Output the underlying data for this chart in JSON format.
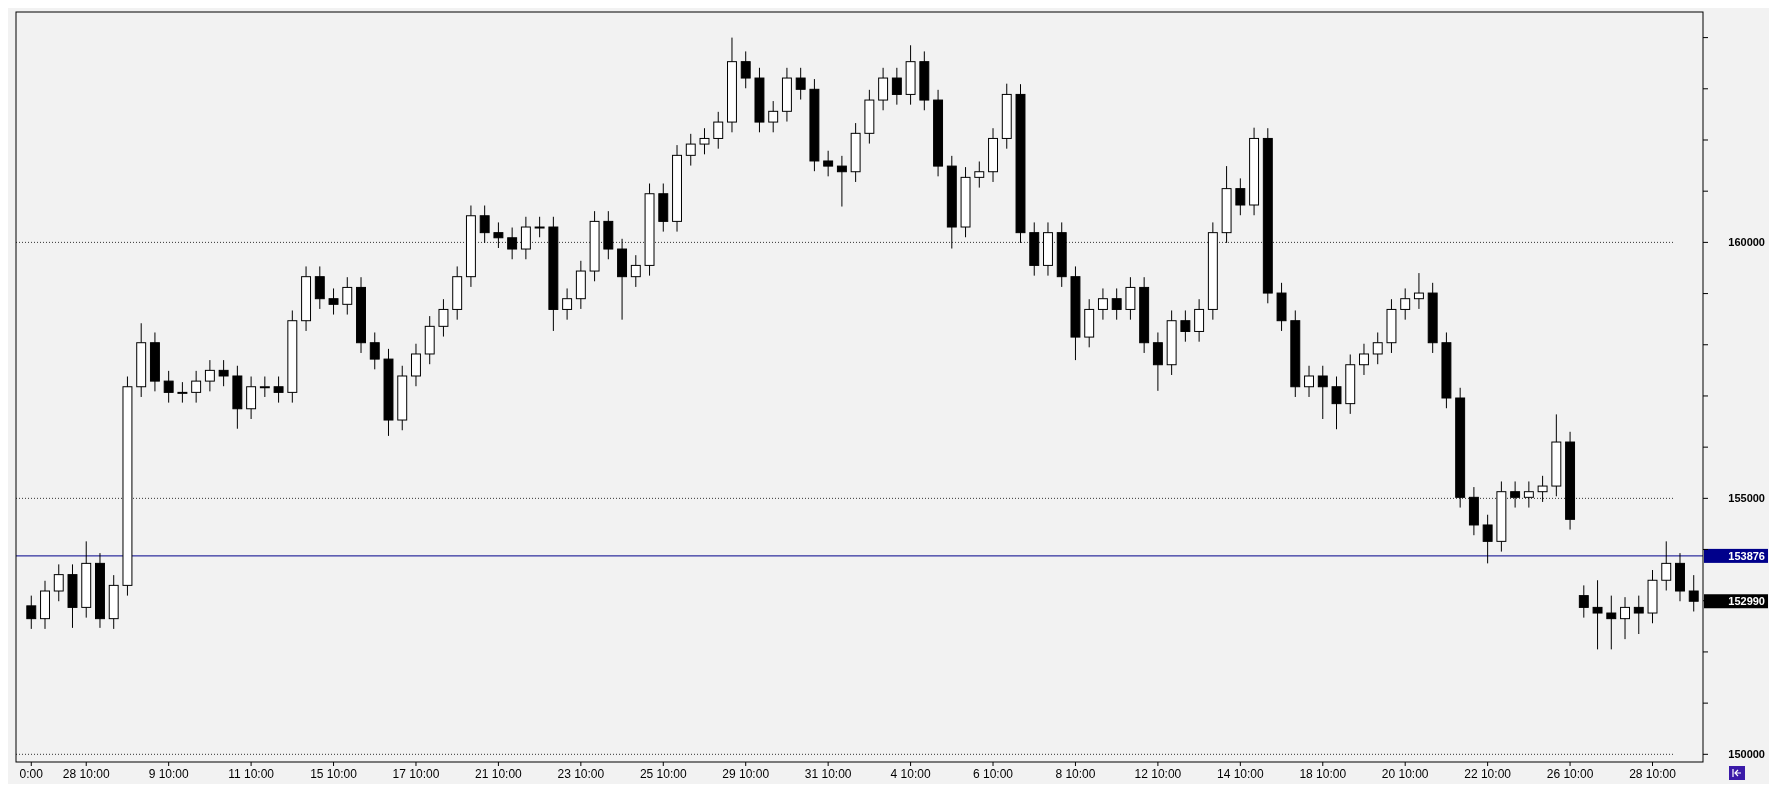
{
  "chart_data": {
    "type": "candlestick",
    "categories": [
      "0:00",
      null,
      null,
      null,
      "28 10:00",
      null,
      null,
      null,
      null,
      null,
      "9 10:00",
      null,
      null,
      null,
      null,
      null,
      "11 10:00",
      null,
      null,
      null,
      null,
      null,
      "15 10:00",
      null,
      null,
      null,
      null,
      null,
      "17 10:00",
      null,
      null,
      null,
      null,
      null,
      "21 10:00",
      null,
      null,
      null,
      null,
      null,
      "23 10:00",
      null,
      null,
      null,
      null,
      null,
      "25 10:00",
      null,
      null,
      null,
      null,
      null,
      "29 10:00",
      null,
      null,
      null,
      null,
      null,
      "31 10:00",
      null,
      null,
      null,
      null,
      null,
      "4 10:00",
      null,
      null,
      null,
      null,
      null,
      "6 10:00",
      null,
      null,
      null,
      null,
      null,
      "8 10:00",
      null,
      null,
      null,
      null,
      null,
      "12 10:00",
      null,
      null,
      null,
      null,
      null,
      "14 10:00",
      null,
      null,
      null,
      null,
      null,
      "18 10:00",
      null,
      null,
      null,
      null,
      null,
      "20 10:00",
      null,
      null,
      null,
      null,
      null,
      "22 10:00",
      null,
      null,
      null,
      null,
      null,
      "26 10:00",
      null,
      null,
      null,
      null,
      null,
      "28 10:00",
      null,
      null,
      null
    ],
    "ohlc": [
      [
        152900,
        153100,
        152450,
        152650
      ],
      [
        152650,
        153390,
        152450,
        153190
      ],
      [
        153190,
        153710,
        152990,
        153510
      ],
      [
        153510,
        153710,
        152470,
        152870
      ],
      [
        152870,
        154160,
        152670,
        153730
      ],
      [
        153730,
        153930,
        152470,
        152650
      ],
      [
        152650,
        153500,
        152450,
        153300
      ],
      [
        153300,
        157380,
        153100,
        157180
      ],
      [
        157180,
        158420,
        156980,
        158040
      ],
      [
        158040,
        158240,
        157090,
        157290
      ],
      [
        157290,
        157490,
        156870,
        157070
      ],
      [
        157070,
        157270,
        156870,
        157070
      ],
      [
        157070,
        157490,
        156870,
        157290
      ],
      [
        157290,
        157700,
        157090,
        157500
      ],
      [
        157500,
        157700,
        157190,
        157390
      ],
      [
        157390,
        157590,
        156360,
        156750
      ],
      [
        156750,
        157380,
        156550,
        157180
      ],
      [
        157180,
        157380,
        156980,
        157180
      ],
      [
        157180,
        157380,
        156870,
        157070
      ],
      [
        157070,
        158670,
        156870,
        158470
      ],
      [
        158470,
        159530,
        158270,
        159330
      ],
      [
        159330,
        159530,
        158700,
        158900
      ],
      [
        158900,
        159100,
        158590,
        158790
      ],
      [
        158790,
        159320,
        158590,
        159120
      ],
      [
        159120,
        159320,
        157840,
        158040
      ],
      [
        158040,
        158240,
        157520,
        157720
      ],
      [
        157720,
        157920,
        156220,
        156530
      ],
      [
        156530,
        157590,
        156330,
        157390
      ],
      [
        157390,
        158020,
        157190,
        157820
      ],
      [
        157820,
        158560,
        157620,
        158360
      ],
      [
        158360,
        158890,
        158160,
        158690
      ],
      [
        158690,
        159530,
        158490,
        159330
      ],
      [
        159330,
        160720,
        159130,
        160520
      ],
      [
        160520,
        160720,
        159990,
        160190
      ],
      [
        160190,
        160390,
        159890,
        160090
      ],
      [
        160090,
        160290,
        159670,
        159870
      ],
      [
        159870,
        160500,
        159670,
        160300
      ],
      [
        160300,
        160500,
        160100,
        160300
      ],
      [
        160300,
        160500,
        158270,
        158690
      ],
      [
        158690,
        159100,
        158490,
        158900
      ],
      [
        158900,
        159640,
        158700,
        159440
      ],
      [
        159440,
        160610,
        159240,
        160410
      ],
      [
        160410,
        160610,
        159670,
        159870
      ],
      [
        159870,
        160070,
        158490,
        159330
      ],
      [
        159330,
        159750,
        159130,
        159550
      ],
      [
        159550,
        161150,
        159350,
        160950
      ],
      [
        160950,
        161150,
        160210,
        160410
      ],
      [
        160410,
        161900,
        160210,
        161700
      ],
      [
        161700,
        162120,
        161500,
        161920
      ],
      [
        161920,
        162230,
        161720,
        162030
      ],
      [
        162030,
        162550,
        161830,
        162350
      ],
      [
        162350,
        164000,
        162150,
        163530
      ],
      [
        163530,
        163730,
        163010,
        163210
      ],
      [
        163210,
        163410,
        162150,
        162350
      ],
      [
        162350,
        162760,
        162150,
        162560
      ],
      [
        162560,
        163410,
        162360,
        163210
      ],
      [
        163210,
        163410,
        162790,
        162990
      ],
      [
        162990,
        163190,
        161390,
        161590
      ],
      [
        161590,
        161790,
        161290,
        161490
      ],
      [
        161490,
        161690,
        160700,
        161380
      ],
      [
        161380,
        162330,
        161180,
        162130
      ],
      [
        162130,
        162980,
        161930,
        162780
      ],
      [
        162780,
        163410,
        162580,
        163210
      ],
      [
        163210,
        163410,
        162690,
        162890
      ],
      [
        162890,
        163850,
        162690,
        163530
      ],
      [
        163530,
        163730,
        162580,
        162780
      ],
      [
        162780,
        162980,
        161290,
        161490
      ],
      [
        161490,
        161690,
        159880,
        160300
      ],
      [
        160300,
        161470,
        160100,
        161270
      ],
      [
        161270,
        161580,
        161070,
        161380
      ],
      [
        161380,
        162230,
        161180,
        162030
      ],
      [
        162030,
        163100,
        161830,
        162890
      ],
      [
        162890,
        163090,
        159990,
        160190
      ],
      [
        160190,
        160390,
        159350,
        159550
      ],
      [
        159550,
        160390,
        159350,
        160190
      ],
      [
        160190,
        160390,
        159130,
        159330
      ],
      [
        159330,
        159530,
        157700,
        158150
      ],
      [
        158150,
        158890,
        157950,
        158690
      ],
      [
        158690,
        159100,
        158490,
        158900
      ],
      [
        158900,
        159100,
        158490,
        158690
      ],
      [
        158690,
        159320,
        158490,
        159120
      ],
      [
        159120,
        159320,
        157840,
        158040
      ],
      [
        158040,
        158240,
        157100,
        157610
      ],
      [
        157610,
        158670,
        157410,
        158470
      ],
      [
        158470,
        158670,
        158060,
        158260
      ],
      [
        158260,
        158890,
        158060,
        158690
      ],
      [
        158690,
        160390,
        158490,
        160190
      ],
      [
        160190,
        161490,
        159990,
        161050
      ],
      [
        161050,
        161250,
        160530,
        160730
      ],
      [
        160730,
        162240,
        160530,
        162030
      ],
      [
        162030,
        162230,
        158810,
        159010
      ],
      [
        159010,
        159210,
        158270,
        158470
      ],
      [
        158470,
        158670,
        156980,
        157180
      ],
      [
        157180,
        157590,
        156980,
        157390
      ],
      [
        157390,
        157590,
        156550,
        157180
      ],
      [
        157180,
        157380,
        156350,
        156850
      ],
      [
        156850,
        157810,
        156650,
        157610
      ],
      [
        157610,
        158020,
        157410,
        157820
      ],
      [
        157820,
        158240,
        157620,
        158040
      ],
      [
        158040,
        158890,
        157840,
        158690
      ],
      [
        158690,
        159100,
        158490,
        158900
      ],
      [
        158900,
        159400,
        158700,
        159010
      ],
      [
        159010,
        159210,
        157840,
        158040
      ],
      [
        158040,
        158240,
        156760,
        156960
      ],
      [
        156960,
        157160,
        154820,
        155020
      ],
      [
        155020,
        155220,
        154280,
        154480
      ],
      [
        154480,
        154680,
        153730,
        154160
      ],
      [
        154160,
        155330,
        153960,
        155130
      ],
      [
        155130,
        155330,
        154820,
        155020
      ],
      [
        155020,
        155330,
        154820,
        155130
      ],
      [
        155130,
        155440,
        154930,
        155240
      ],
      [
        155240,
        156640,
        155040,
        156100
      ],
      [
        156100,
        156300,
        154390,
        154590
      ],
      [
        153100,
        153300,
        152670,
        152870
      ],
      [
        152870,
        153400,
        152050,
        152760
      ],
      [
        152760,
        153100,
        152050,
        152650
      ],
      [
        152650,
        153070,
        152250,
        152870
      ],
      [
        152870,
        153100,
        152350,
        152760
      ],
      [
        152760,
        153600,
        152560,
        153400
      ],
      [
        153400,
        154160,
        153200,
        153730
      ],
      [
        153730,
        153930,
        152990,
        153190
      ],
      [
        153190,
        153500,
        152790,
        152990
      ]
    ],
    "ylim": [
      149850,
      164500
    ],
    "yticks": [
      150000,
      {
        "value": 151000,
        "label": null
      },
      {
        "value": 152000,
        "label": null
      },
      {
        "value": 153000,
        "label": null
      },
      {
        "value": 154000,
        "label": null
      },
      155000,
      {
        "value": 156000,
        "label": null
      },
      {
        "value": 157000,
        "label": null
      },
      {
        "value": 158000,
        "label": null
      },
      {
        "value": 159000,
        "label": null
      },
      160000,
      {
        "value": 161000,
        "label": null
      },
      {
        "value": 162000,
        "label": null
      },
      {
        "value": 163000,
        "label": null
      },
      {
        "value": 164000,
        "label": null
      }
    ],
    "grid": "y",
    "ref_lines": [
      {
        "axis": "y",
        "value": 153876,
        "label": "153876",
        "color": "#00008b"
      }
    ],
    "annotations": [
      "152990"
    ]
  }
}
